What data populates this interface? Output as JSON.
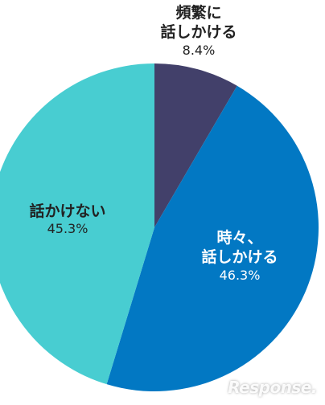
{
  "chart_data": {
    "type": "pie",
    "slices": [
      {
        "name": "頻繁に\n話しかける",
        "value": 8.4,
        "value_label": "8.4%",
        "color": "#42406a",
        "label_color": "#222222"
      },
      {
        "name": "時々、\n話しかける",
        "value": 46.3,
        "value_label": "46.3%",
        "color": "#0278c3",
        "label_color": "#ffffff"
      },
      {
        "name": "話かけない",
        "value": 45.3,
        "value_label": "45.3%",
        "color": "#48cdd1",
        "label_color": "#222222"
      }
    ],
    "start_angle_deg": 0,
    "direction": "clockwise",
    "legend": "none"
  },
  "watermark": {
    "text": "Response."
  }
}
